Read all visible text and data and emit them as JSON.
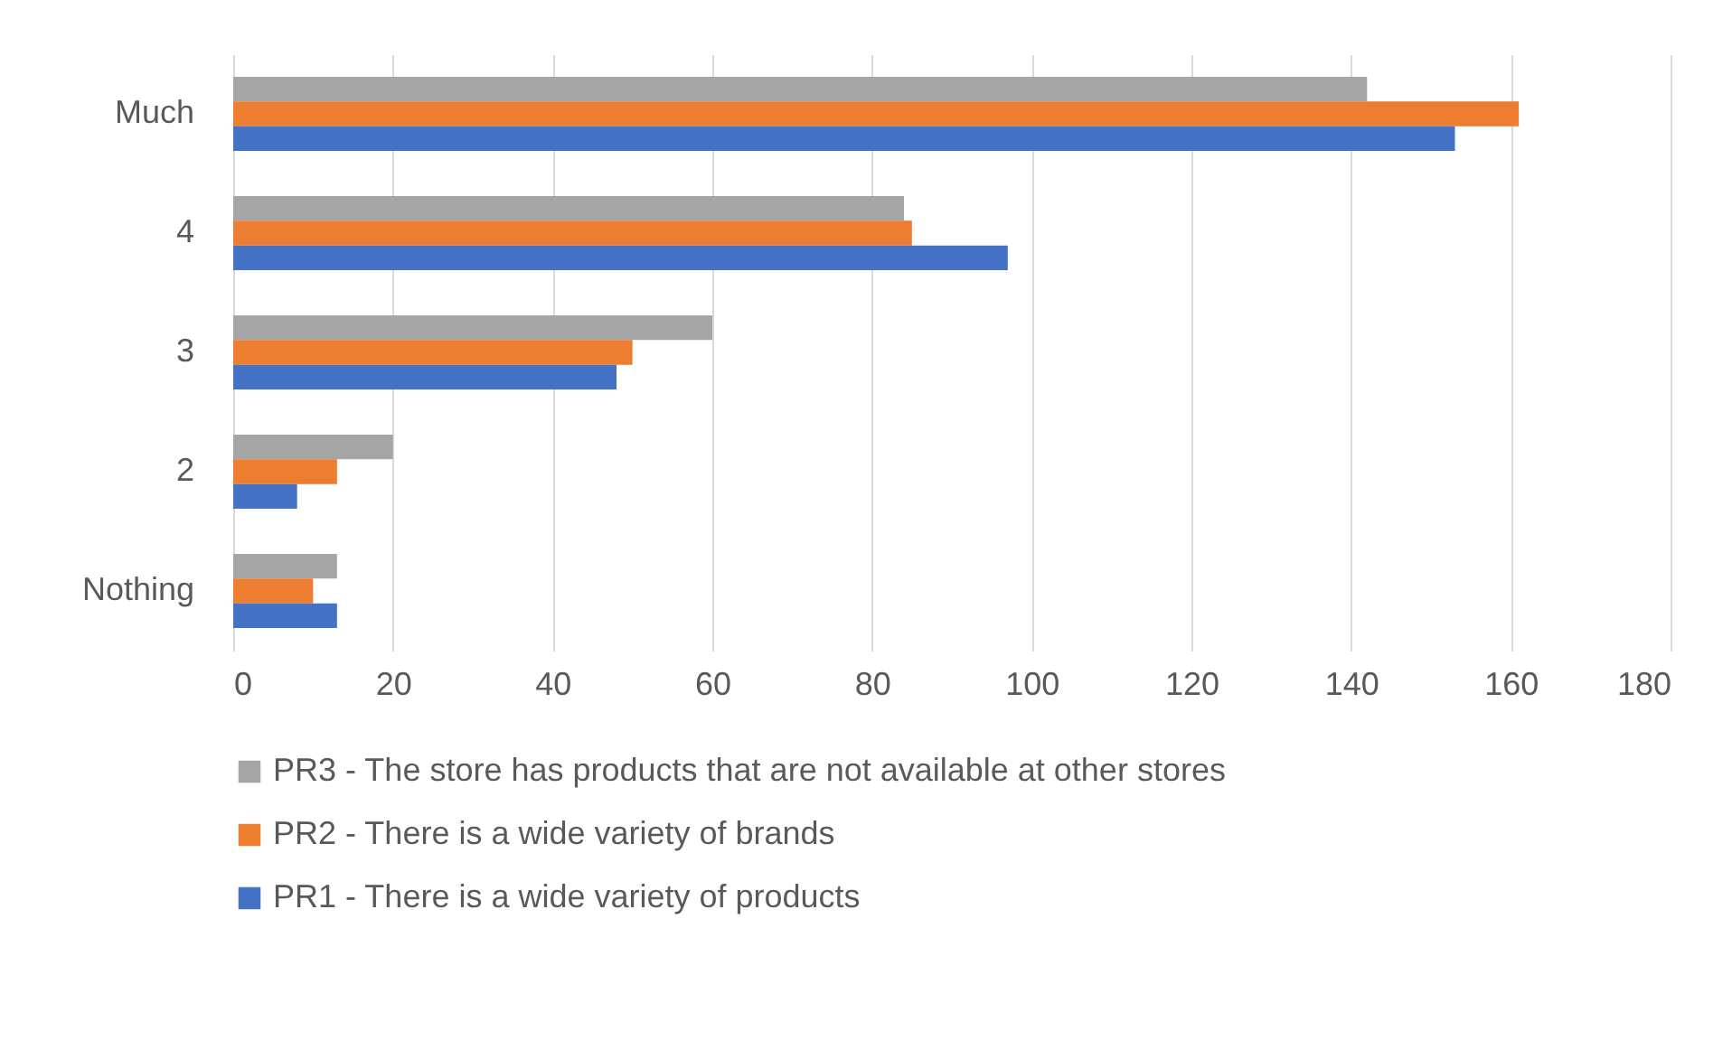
{
  "chart_data": {
    "type": "bar",
    "orientation": "horizontal",
    "categories": [
      "Much",
      "4",
      "3",
      "2",
      "Nothing"
    ],
    "series": [
      {
        "name": "PR3 - The store has products that are not available at other stores",
        "color": "#a5a5a5",
        "values": [
          142,
          84,
          60,
          20,
          13
        ]
      },
      {
        "name": "PR2 - There is a wide variety of brands",
        "color": "#ed7d31",
        "values": [
          161,
          85,
          50,
          13,
          10
        ]
      },
      {
        "name": "PR1 - There is a wide variety of products",
        "color": "#4472c4",
        "values": [
          153,
          97,
          48,
          8,
          13
        ]
      }
    ],
    "xlim": [
      0,
      180
    ],
    "xticks": [
      0,
      20,
      40,
      60,
      80,
      100,
      120,
      140,
      160,
      180
    ],
    "grid": "x",
    "legend": "bottom"
  }
}
